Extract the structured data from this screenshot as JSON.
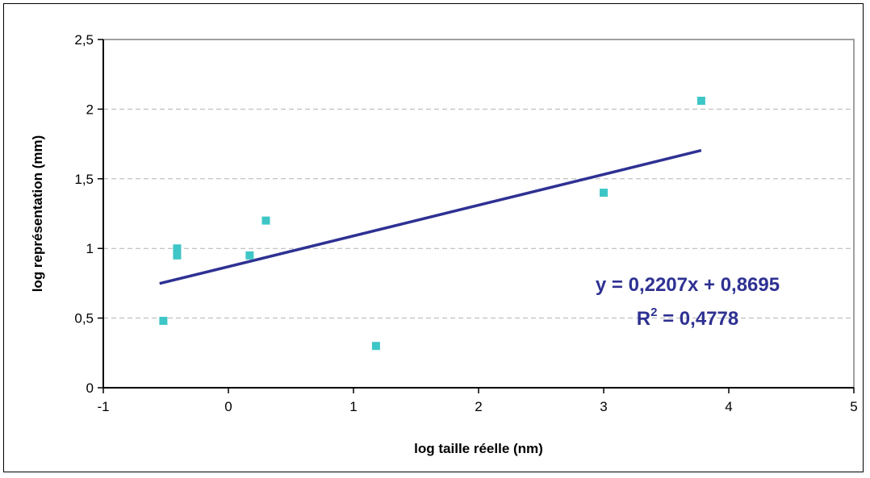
{
  "chart_data": {
    "type": "scatter",
    "title": "",
    "xlabel": "log taille réelle (nm)",
    "ylabel": "log représentation (mm)",
    "xlim": [
      -1,
      5
    ],
    "ylim": [
      0,
      2.5
    ],
    "xticks": [
      -1,
      0,
      1,
      2,
      3,
      4,
      5
    ],
    "yticks": [
      0,
      0.5,
      1,
      1.5,
      2,
      2.5
    ],
    "xtick_labels": [
      "-1",
      "0",
      "1",
      "2",
      "3",
      "4",
      "5"
    ],
    "ytick_labels": [
      "0",
      "0,5",
      "1",
      "1,5",
      "2",
      "2,5"
    ],
    "grid": {
      "horizontal": true,
      "style": "dashed"
    },
    "legend": "none",
    "series": [
      {
        "color": "#3ec6c6",
        "marker": "square",
        "points": [
          {
            "x": -0.52,
            "y": 0.48
          },
          {
            "x": -0.41,
            "y": 1.0
          },
          {
            "x": -0.41,
            "y": 0.95
          },
          {
            "x": 0.17,
            "y": 0.95
          },
          {
            "x": 0.3,
            "y": 1.2
          },
          {
            "x": 1.18,
            "y": 0.3
          },
          {
            "x": 3.0,
            "y": 1.4
          },
          {
            "x": 3.78,
            "y": 2.06
          }
        ]
      }
    ],
    "trendline": {
      "type": "linear",
      "slope": 0.2207,
      "intercept": 0.8695,
      "x_range": [
        -0.55,
        3.78
      ],
      "color": "#2e3192",
      "equation_label": "y = 0,2207x + 0,8695",
      "r2_label_prefix": "R",
      "r2_label_superscript": "2",
      "r2_label_suffix": " = 0,4778"
    }
  }
}
